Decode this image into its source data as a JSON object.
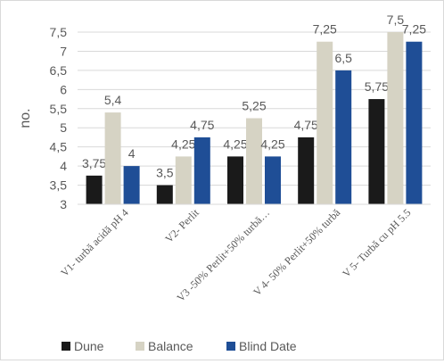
{
  "chart_data": {
    "type": "bar",
    "ylabel": "no.",
    "ylim": [
      3,
      7.5
    ],
    "yticks": [
      "3",
      "3,5",
      "4",
      "4,5",
      "5",
      "5,5",
      "6",
      "6,5",
      "7",
      "7,5"
    ],
    "grid": true,
    "legend_position": "bottom",
    "categories": [
      "V1- turbă acidă pH 4",
      "V2- Perlit",
      "V3 -50% Perlit+50% turbă…",
      "V 4- 50% Perlit+50% turbă",
      "V 5- Turbă cu pH 5.5"
    ],
    "series": [
      {
        "name": "Dune",
        "color": "#1a1a1a",
        "values": [
          3.75,
          3.5,
          4.25,
          4.75,
          5.75
        ],
        "labels": [
          "3,75",
          "3,5",
          "4,25",
          "4,75",
          "5,75"
        ]
      },
      {
        "name": "Balance",
        "color": "#d6d3c4",
        "values": [
          5.4,
          4.25,
          5.25,
          7.25,
          7.5
        ],
        "labels": [
          "5,4",
          "4,25",
          "5,25",
          "7,25",
          "7,5"
        ]
      },
      {
        "name": "Blind Date",
        "color": "#1f4e96",
        "values": [
          4,
          4.75,
          4.25,
          6.5,
          7.25
        ],
        "labels": [
          "4",
          "4,75",
          "4,25",
          "6,5",
          "7,25"
        ]
      }
    ]
  }
}
